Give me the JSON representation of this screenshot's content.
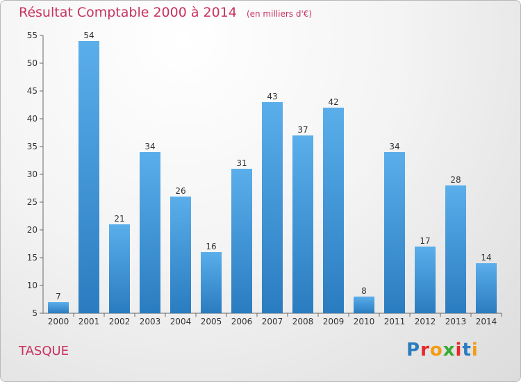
{
  "header": {
    "title": "Résultat Comptable 2000 à 2014",
    "subtitle": "(en milliers d'€)"
  },
  "footer": {
    "commune": "TASQUE",
    "brand": "Proxiti"
  },
  "colors": {
    "bar_top": "#5aaeea",
    "bar_bottom": "#2a7cc0",
    "title": "#c8315f"
  },
  "chart_data": {
    "type": "bar",
    "categories": [
      "2000",
      "2001",
      "2002",
      "2003",
      "2004",
      "2005",
      "2006",
      "2007",
      "2008",
      "2009",
      "2010",
      "2011",
      "2012",
      "2013",
      "2014"
    ],
    "values": [
      7,
      54,
      21,
      34,
      26,
      16,
      31,
      43,
      37,
      42,
      8,
      34,
      17,
      28,
      14
    ],
    "ylim": [
      5,
      55
    ],
    "yticks": [
      5,
      10,
      15,
      20,
      25,
      30,
      35,
      40,
      45,
      50,
      55
    ],
    "grid": false,
    "data_labels": true
  }
}
